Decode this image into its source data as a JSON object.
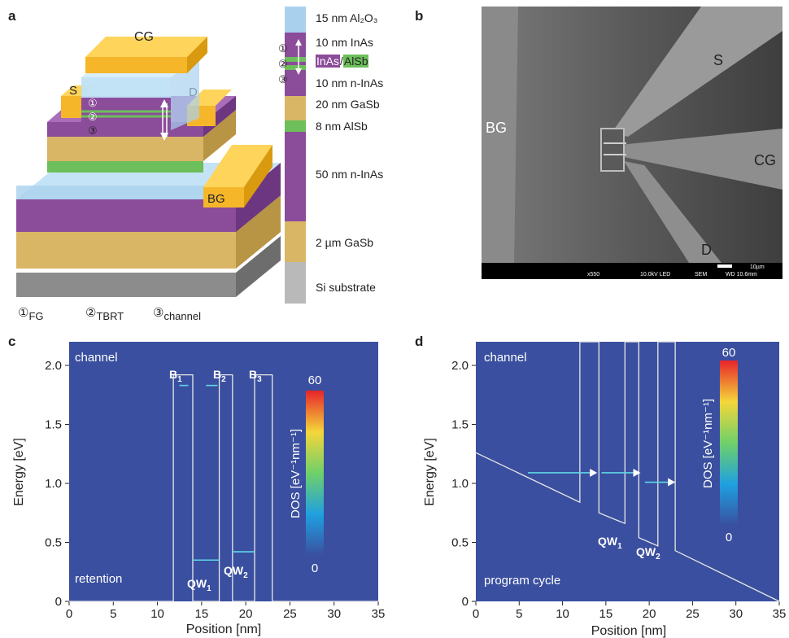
{
  "panel_a": {
    "letter": "a",
    "device_labels": {
      "cg": "CG",
      "s": "S",
      "d": "D",
      "bg": "BG"
    },
    "markers": [
      "①",
      "②",
      "③"
    ],
    "layer_stack": [
      {
        "label": "15 nm Al₂O₃",
        "color": "#a9d1ee"
      },
      {
        "label": "10 nm InAs",
        "color": "#8b4c9a"
      },
      {
        "label_a": "InAs",
        "label_sep": "/",
        "label_b": "AlSb",
        "color": "#8b4c9a"
      },
      {
        "label": "10 nm n-InAs",
        "color": "#8b4c9a"
      },
      {
        "label": "20 nm GaSb",
        "color": "#d9b566"
      },
      {
        "label": "8 nm AlSb",
        "color": "#6cbf5a"
      },
      {
        "label": "50 nm n-InAs",
        "color": "#8b4c9a"
      },
      {
        "label": "2 µm GaSb",
        "color": "#d9b566"
      },
      {
        "label": "Si substrate",
        "color": "#a0a0a0"
      }
    ],
    "legend": [
      {
        "num": "①",
        "sub": "FG"
      },
      {
        "num": "②",
        "sub": "TBRT"
      },
      {
        "num": "③",
        "sub": "channel"
      }
    ]
  },
  "panel_b": {
    "letter": "b",
    "labels": {
      "bg": "BG",
      "s": "S",
      "cg": "CG",
      "d": "D"
    },
    "sem_info": [
      "x550",
      "10.0kV LED",
      "SEM",
      "WD 10.6mm"
    ],
    "scale_bar": "10µm"
  },
  "panel_c": {
    "letter": "c",
    "corner_top": "channel",
    "corner_bottom": "retention",
    "barriers": [
      {
        "main": "B",
        "sub": "1"
      },
      {
        "main": "B",
        "sub": "2"
      },
      {
        "main": "B",
        "sub": "3"
      }
    ],
    "wells": [
      {
        "main": "QW",
        "sub": "1"
      },
      {
        "main": "QW",
        "sub": "2"
      }
    ],
    "colorbar": {
      "max": "60",
      "min": "0",
      "label": "DOS [eV⁻¹nm⁻¹]"
    }
  },
  "panel_d": {
    "letter": "d",
    "corner_top": "channel",
    "corner_bottom": "program cycle",
    "wells": [
      {
        "main": "QW",
        "sub": "1"
      },
      {
        "main": "QW",
        "sub": "2"
      }
    ],
    "colorbar": {
      "max": "60",
      "min": "0",
      "label": "DOS [eV⁻¹nm⁻¹]"
    }
  },
  "axes": {
    "xlabel": "Position [nm]",
    "ylabel": "Energy [eV]",
    "xticks": [
      "0",
      "5",
      "10",
      "15",
      "20",
      "25",
      "30",
      "35"
    ],
    "yticks": [
      "0",
      "0.5",
      "1.0",
      "1.5",
      "2.0"
    ]
  },
  "chart_data": [
    {
      "panel": "c",
      "type": "line",
      "xlabel": "Position [nm]",
      "ylabel": "Energy [eV]",
      "xlim": [
        0,
        35
      ],
      "ylim": [
        0,
        2.2
      ],
      "series": [
        {
          "values_x": [
            0,
            11.8,
            11.8,
            14,
            14,
            17,
            17,
            18.5,
            18.5,
            21,
            21,
            23,
            23,
            35
          ],
          "values_y": [
            0,
            0,
            1.92,
            1.92,
            0,
            0,
            1.92,
            1.92,
            0,
            0,
            1.92,
            1.92,
            0,
            0
          ]
        }
      ],
      "levels": [
        {
          "x": [
            14,
            17
          ],
          "y": 0.35
        },
        {
          "x": [
            18.5,
            21
          ],
          "y": 0.42
        },
        {
          "x": [
            12.5,
            13.5
          ],
          "y": 1.83
        },
        {
          "x": [
            15.5,
            16.8
          ],
          "y": 1.83
        }
      ],
      "colormap": "jet",
      "background": "#3a4f9f"
    },
    {
      "panel": "d",
      "type": "line",
      "xlabel": "Position [nm]",
      "ylabel": "Energy [eV]",
      "xlim": [
        0,
        35
      ],
      "ylim": [
        0,
        2.2
      ],
      "series": [
        {
          "values_x": [
            0,
            12,
            12,
            14.2,
            14.2,
            17.2,
            17.2,
            18.8,
            18.8,
            21,
            21,
            23,
            23,
            35
          ],
          "values_y": [
            1.26,
            0.84,
            2.2,
            2.2,
            0.75,
            0.66,
            2.2,
            2.2,
            0.54,
            0.47,
            2.2,
            2.2,
            0.43,
            0
          ]
        }
      ],
      "arrows": [
        {
          "x": [
            6,
            14
          ],
          "y": 1.09
        },
        {
          "x": [
            14.5,
            19
          ],
          "y": 1.09
        },
        {
          "x": [
            19.5,
            23
          ],
          "y": 1.01
        }
      ],
      "colormap": "jet",
      "background": "#3a4f9f"
    }
  ]
}
